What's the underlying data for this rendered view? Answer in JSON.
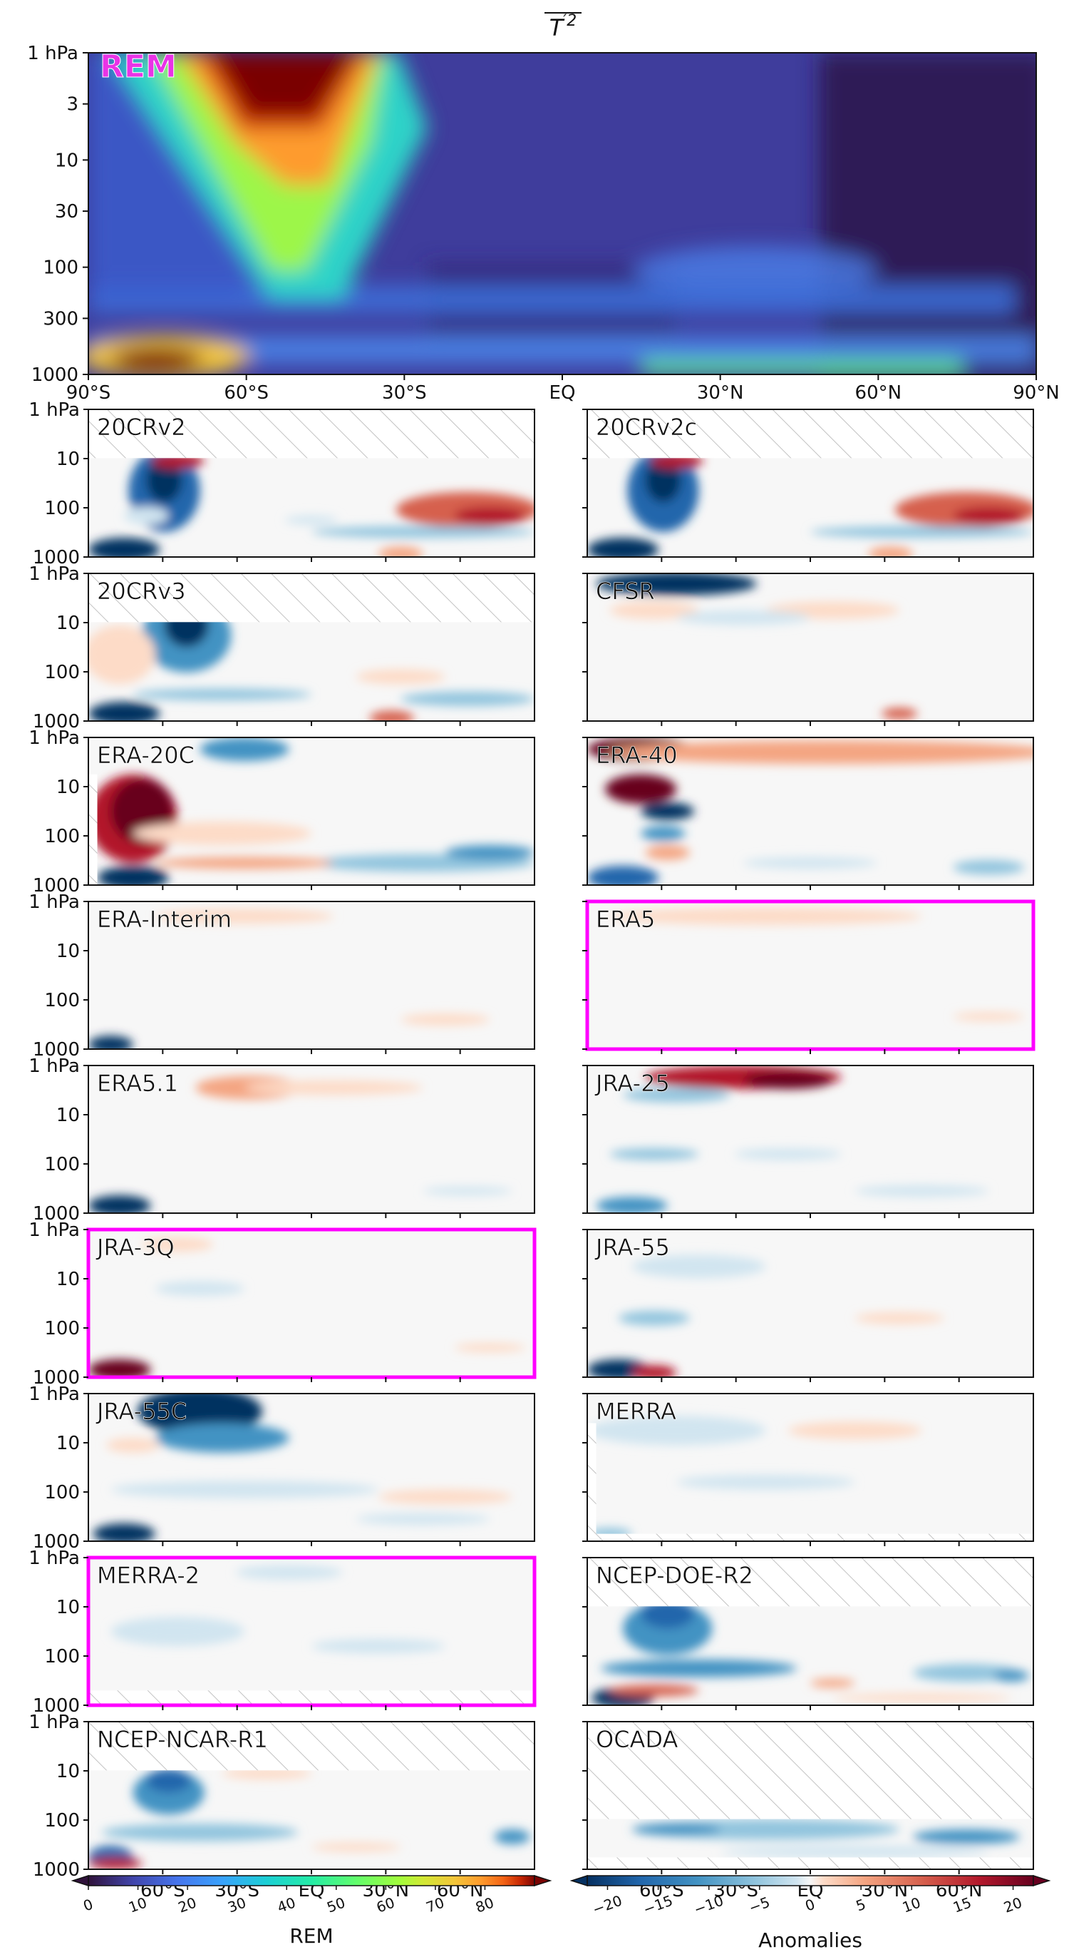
{
  "chart_data": {
    "type": "heatmap",
    "title": "T'2 (overline)",
    "y_axis": {
      "scale": "log",
      "ticks": [
        "1 hPa",
        "3",
        "10",
        "30",
        "100",
        "300",
        "1000"
      ],
      "range_hPa": [
        1,
        1000
      ]
    },
    "x_axis": {
      "ticks": [
        "90°S",
        "60°S",
        "30°S",
        "EQ",
        "30°N",
        "60°N",
        "90°N"
      ],
      "range_deg": [
        -90,
        90
      ]
    },
    "main_panel": {
      "label": "REM",
      "label_color": "#e933e6",
      "y_ticks": [
        "1 hPa",
        "3",
        "10",
        "30",
        "100",
        "300",
        "1000"
      ],
      "x_ticks": [
        "90°S",
        "60°S",
        "30°S",
        "EQ",
        "30°N",
        "60°N",
        "90°N"
      ]
    },
    "small_y_ticks": [
      "1 hPa",
      "10",
      "100",
      "1000"
    ],
    "small_x_ticks": [
      "60°S",
      "30°S",
      "EQ",
      "30°N",
      "60°N"
    ],
    "panels": [
      {
        "name": "20CRv2"
      },
      {
        "name": "20CRv2c"
      },
      {
        "name": "20CRv3"
      },
      {
        "name": "CFSR"
      },
      {
        "name": "ERA-20C"
      },
      {
        "name": "ERA-40"
      },
      {
        "name": "ERA-Interim"
      },
      {
        "name": "ERA5"
      },
      {
        "name": "ERA5.1"
      },
      {
        "name": "JRA-25"
      },
      {
        "name": "JRA-3Q"
      },
      {
        "name": "JRA-55"
      },
      {
        "name": "JRA-55C"
      },
      {
        "name": "MERRA"
      },
      {
        "name": "MERRA-2"
      },
      {
        "name": "NCEP-DOE-R2"
      },
      {
        "name": "NCEP-NCAR-R1"
      },
      {
        "name": "OCADA"
      }
    ],
    "highlighted_panels": [
      "ERA5",
      "JRA-3Q",
      "MERRA-2"
    ],
    "highlight_color": "#ff00ff",
    "colorbars": [
      {
        "label": "REM",
        "colormap": "turbo",
        "ticks": [
          "0",
          "10",
          "20",
          "30",
          "40",
          "50",
          "60",
          "70",
          "80"
        ],
        "range": [
          0,
          90
        ]
      },
      {
        "label": "Anomalies",
        "colormap": "RdBu_r",
        "ticks": [
          "−20",
          "−15",
          "−10",
          "−5",
          "0",
          "5",
          "10",
          "15",
          "20"
        ],
        "range": [
          -22,
          22
        ]
      }
    ]
  }
}
